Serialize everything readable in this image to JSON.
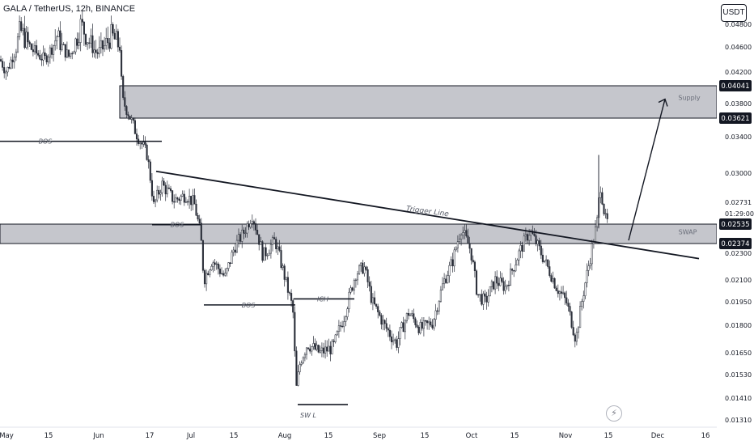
{
  "header": {
    "symbol": "GALA / TetherUS, 12h, BINANCE"
  },
  "currency_button": "USDT",
  "chart_data": {
    "type": "candlestick",
    "title": "GALA / TetherUS, 12h, BINANCE",
    "xlabel": "",
    "ylabel": "",
    "ylim": [
      0.0128,
      0.0506
    ],
    "grid": false,
    "y_ticks": [
      "0.01310",
      "0.01410",
      "0.01530",
      "0.01650",
      "0.01800",
      "0.01950",
      "0.02100",
      "0.02300",
      "0.02535",
      "0.02731",
      "0.03000",
      "0.03400",
      "0.03621",
      "0.03800",
      "0.04041",
      "0.04200",
      "0.04600",
      "0.04800"
    ],
    "x_ticks": [
      "May",
      "15",
      "Jun",
      "17",
      "Jul",
      "15",
      "Aug",
      "15",
      "Sep",
      "15",
      "Oct",
      "15",
      "Nov",
      "15",
      "Dec",
      "16"
    ],
    "price_labels": {
      "supply_top": "0.04041",
      "supply_bottom": "0.03621",
      "current": "0.02535",
      "countdown": "01:29:00",
      "last_high": "0.02731",
      "swap_bottom": "0.02374"
    },
    "zones": [
      {
        "name": "Supply",
        "top": 0.04041,
        "bottom": 0.03621
      },
      {
        "name": "SWAP",
        "top": 0.02535,
        "bottom": 0.02374
      }
    ],
    "annotations": [
      {
        "text": "BOS",
        "y": 0.0335
      },
      {
        "text": "BOS",
        "y": 0.0253
      },
      {
        "text": "BOS",
        "y": 0.0193
      },
      {
        "text": "ICH",
        "y": 0.0197
      },
      {
        "text": "SW L",
        "y": 0.0138
      },
      {
        "text": "Trigger Line"
      },
      {
        "text": "Supply"
      },
      {
        "text": "SWAP"
      }
    ],
    "trigger_line": {
      "start_y": 0.0302,
      "end_y": 0.0226
    },
    "projection_arrow": {
      "from_y": 0.024,
      "to_y": 0.0386
    },
    "path_points": [
      [
        0,
        0.044
      ],
      [
        8,
        0.042
      ],
      [
        25,
        0.0475
      ],
      [
        40,
        0.0455
      ],
      [
        55,
        0.044
      ],
      [
        70,
        0.047
      ],
      [
        85,
        0.0445
      ],
      [
        100,
        0.048
      ],
      [
        120,
        0.045
      ],
      [
        138,
        0.047
      ],
      [
        148,
        0.046
      ],
      [
        151,
        0.0385
      ],
      [
        158,
        0.037
      ],
      [
        168,
        0.0345
      ],
      [
        182,
        0.032
      ],
      [
        190,
        0.027
      ],
      [
        200,
        0.029
      ],
      [
        215,
        0.0275
      ],
      [
        230,
        0.028
      ],
      [
        240,
        0.0272
      ],
      [
        248,
        0.0245
      ],
      [
        252,
        0.021
      ],
      [
        262,
        0.0225
      ],
      [
        278,
        0.0212
      ],
      [
        290,
        0.0235
      ],
      [
        300,
        0.0245
      ],
      [
        312,
        0.0262
      ],
      [
        325,
        0.0228
      ],
      [
        340,
        0.024
      ],
      [
        355,
        0.0205
      ],
      [
        362,
        0.019
      ],
      [
        366,
        0.0145
      ],
      [
        371,
        0.016
      ],
      [
        380,
        0.017
      ],
      [
        395,
        0.0165
      ],
      [
        412,
        0.0168
      ],
      [
        425,
        0.0185
      ],
      [
        440,
        0.0215
      ],
      [
        450,
        0.022
      ],
      [
        460,
        0.0195
      ],
      [
        475,
        0.018
      ],
      [
        490,
        0.017
      ],
      [
        505,
        0.0188
      ],
      [
        520,
        0.0178
      ],
      [
        535,
        0.0182
      ],
      [
        548,
        0.0208
      ],
      [
        560,
        0.0225
      ],
      [
        570,
        0.025
      ],
      [
        582,
        0.0232
      ],
      [
        590,
        0.02
      ],
      [
        600,
        0.0195
      ],
      [
        612,
        0.021
      ],
      [
        625,
        0.0205
      ],
      [
        640,
        0.0228
      ],
      [
        655,
        0.0248
      ],
      [
        665,
        0.0235
      ],
      [
        675,
        0.0222
      ],
      [
        688,
        0.0205
      ],
      [
        700,
        0.0195
      ],
      [
        712,
        0.0172
      ],
      [
        720,
        0.0198
      ],
      [
        730,
        0.0228
      ],
      [
        738,
        0.0255
      ],
      [
        742,
        0.029
      ],
      [
        748,
        0.0258
      ],
      [
        752,
        0.0254
      ]
    ]
  }
}
